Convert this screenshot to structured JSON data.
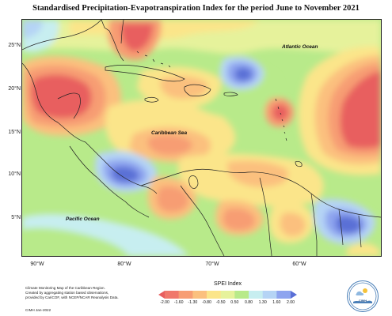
{
  "title": "Standardised Precipitation-Evapotranspiration Index for the period June to November 2021",
  "map": {
    "lat_labels": [
      "25°N",
      "20°N",
      "15°N",
      "10°N",
      "5°N"
    ],
    "lon_labels": [
      "90°W",
      "80°W",
      "70°W",
      "60°W"
    ],
    "ocean_labels": {
      "atlantic": "Atlantic Ocean",
      "caribbean": "Caribbean Sea",
      "pacific": "Pacific Ocean"
    },
    "colors": {
      "very_wet": "#5a6fd6",
      "wet": "#8ea4ef",
      "moderately_wet": "#b5d4f5",
      "slightly_wet": "#c7eef0",
      "near_normal_wet": "#b8ea8a",
      "near_normal": "#e6f29b",
      "slightly_dry": "#fbe58a",
      "moderately_dry": "#fbc07e",
      "dry": "#f79d73",
      "very_dry": "#f0786b",
      "extremely_dry": "#e85e5e",
      "land_outline": "#222222"
    }
  },
  "legend": {
    "title": "SPEI Index",
    "ticks": [
      "-2.00",
      "-1.60",
      "-1.30",
      "-0.80",
      "-0.50",
      "0.50",
      "0.80",
      "1.30",
      "1.60",
      "2.00"
    ],
    "colors": [
      "#e85e5e",
      "#f0786b",
      "#f79d73",
      "#fbc07e",
      "#fbe58a",
      "#e6f29b",
      "#b8ea8a",
      "#c7eef0",
      "#b5d4f5",
      "#8ea4ef",
      "#5a6fd6"
    ]
  },
  "footer": {
    "note_lines": [
      "Climate Monitoring Map of the Caribbean Region.",
      "Created by aggregating station based observations,",
      "provided by CariCOF, with NCEP/NCAR Reanalysis Data."
    ],
    "credit": "CIMH Jan-2022"
  },
  "logo": {
    "text": "CIMH"
  }
}
